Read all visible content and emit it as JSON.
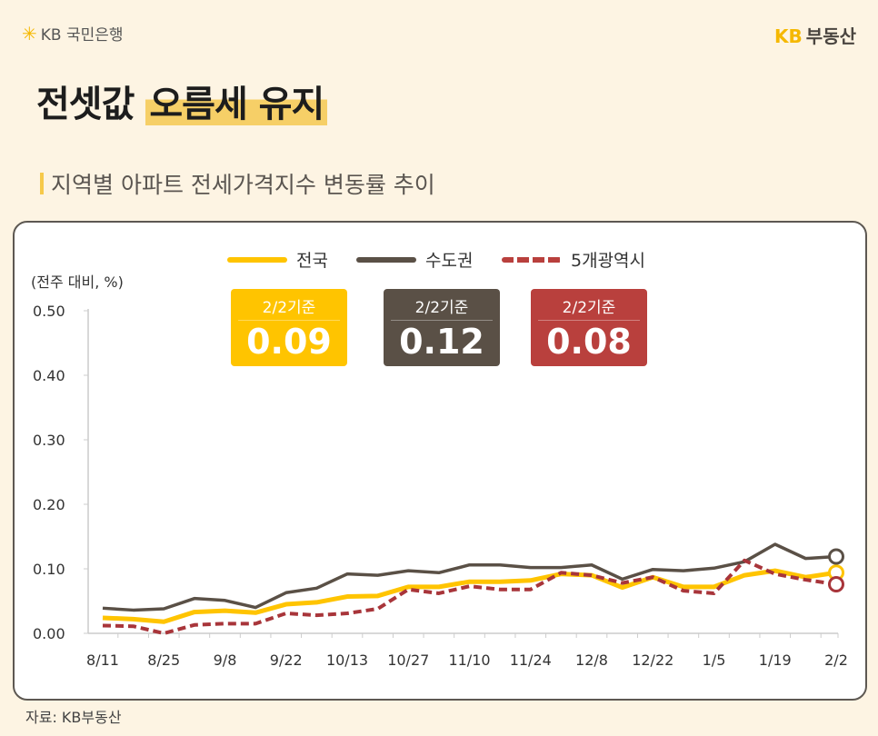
{
  "header": {
    "bank_logo": "KB 국민은행",
    "brand_kb": "KB",
    "brand_name": "부동산"
  },
  "title": {
    "plain": "전셋값",
    "highlight": "오름세 유지"
  },
  "subtitle": "지역별 아파트 전세가격지수 변동률 추이",
  "source": "자료: KB부동산",
  "badges": [
    {
      "label": "2/2기준",
      "value": "0.09",
      "color": "#ffc400"
    },
    {
      "label": "2/2기준",
      "value": "0.12",
      "color": "#5a5046"
    },
    {
      "label": "2/2기준",
      "value": "0.08",
      "color": "#b9403d"
    }
  ],
  "chart_data": {
    "type": "line",
    "ylabel": "(전주 대비, %)",
    "ylim": [
      0,
      0.5
    ],
    "yticks": [
      "0.00",
      "0.10",
      "0.20",
      "0.30",
      "0.40",
      "0.50"
    ],
    "x": [
      "8/11",
      "8/18",
      "8/25",
      "9/1",
      "9/8",
      "9/15",
      "9/22",
      "9/29",
      "10/13",
      "10/20",
      "10/27",
      "11/3",
      "11/10",
      "11/17",
      "11/24",
      "12/1",
      "12/8",
      "12/15",
      "12/22",
      "12/29",
      "1/5",
      "1/12",
      "1/19",
      "1/26",
      "2/2"
    ],
    "xtick_labels": [
      "8/11",
      "8/25",
      "9/8",
      "9/22",
      "10/13",
      "10/27",
      "11/10",
      "11/24",
      "12/8",
      "12/22",
      "1/5",
      "1/19",
      "2/2"
    ],
    "legend": "top",
    "grid": false,
    "series": [
      {
        "name": "전국",
        "color": "#ffc400",
        "style": "solid",
        "values": [
          0.024,
          0.022,
          0.018,
          0.033,
          0.035,
          0.032,
          0.045,
          0.048,
          0.057,
          0.058,
          0.072,
          0.072,
          0.08,
          0.08,
          0.082,
          0.092,
          0.09,
          0.071,
          0.087,
          0.072,
          0.072,
          0.09,
          0.097,
          0.087,
          0.094
        ]
      },
      {
        "name": "수도권",
        "color": "#5a5046",
        "style": "solid",
        "values": [
          0.039,
          0.036,
          0.038,
          0.054,
          0.051,
          0.04,
          0.063,
          0.07,
          0.092,
          0.09,
          0.097,
          0.094,
          0.106,
          0.106,
          0.102,
          0.102,
          0.106,
          0.084,
          0.099,
          0.097,
          0.101,
          0.111,
          0.138,
          0.116,
          0.119
        ]
      },
      {
        "name": "5개광역시",
        "color": "#a8353a",
        "style": "dashed",
        "values": [
          0.012,
          0.011,
          0.0,
          0.013,
          0.015,
          0.015,
          0.031,
          0.028,
          0.031,
          0.038,
          0.068,
          0.062,
          0.073,
          0.068,
          0.068,
          0.094,
          0.09,
          0.078,
          0.087,
          0.066,
          0.062,
          0.113,
          0.092,
          0.083,
          0.076
        ]
      }
    ]
  }
}
